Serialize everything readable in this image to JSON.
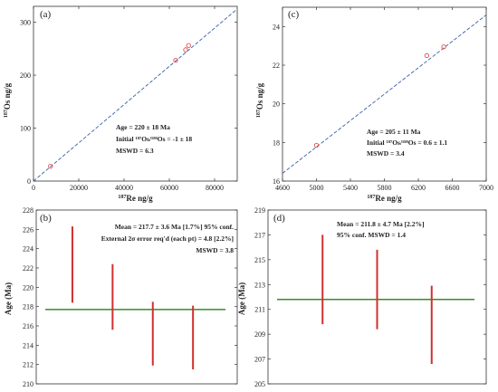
{
  "chart_data": [
    {
      "panel": "(a)",
      "type": "scatter",
      "xlabel_sup": "187",
      "xlabel": "Re ng/g",
      "ylabel_sup": "187",
      "ylabel": "Os ng/g",
      "xlim": [
        0,
        90000
      ],
      "ylim": [
        0,
        330
      ],
      "xticks": [
        0,
        20000,
        40000,
        60000,
        80000
      ],
      "yticks": [
        0,
        100,
        200,
        300
      ],
      "points": [
        [
          7500,
          28
        ],
        [
          62800,
          228
        ],
        [
          67200,
          248
        ],
        [
          68500,
          256
        ]
      ],
      "fit_line": [
        [
          0,
          0
        ],
        [
          90000,
          325
        ]
      ],
      "annotations": [
        "Age = 220 ± 18  Ma",
        "Initial ¹⁸⁷Os/¹⁸⁸Os = -1 ± 18",
        "MSWD = 6.3"
      ]
    },
    {
      "panel": "(c)",
      "type": "scatter",
      "xlabel_sup": "187",
      "xlabel": "Re ng/g",
      "ylabel_sup": "187",
      "ylabel": "Os ng/g",
      "xlim": [
        4600,
        7000
      ],
      "ylim": [
        16,
        25
      ],
      "xticks": [
        4600,
        5000,
        5400,
        5800,
        6200,
        6600,
        7000
      ],
      "yticks": [
        16,
        18,
        20,
        22,
        24
      ],
      "points": [
        [
          5000,
          17.85
        ],
        [
          6300,
          22.5
        ],
        [
          6500,
          22.95
        ]
      ],
      "fit_line": [
        [
          4600,
          16.4
        ],
        [
          7000,
          24.6
        ]
      ],
      "annotations": [
        "Age = 205 ± 11  Ma",
        "Initial ¹⁸⁷Os/¹⁸⁸Os = 0.6 ± 1.1",
        "MSWD = 3.4"
      ]
    },
    {
      "panel": "(b)",
      "type": "errorbar",
      "ylabel": "Age (Ma)",
      "ylim": [
        210,
        228
      ],
      "yticks": [
        210,
        212,
        214,
        216,
        218,
        220,
        222,
        224,
        226,
        228
      ],
      "mean": 217.7,
      "bars": [
        [
          218.4,
          226.3
        ],
        [
          215.6,
          222.4
        ],
        [
          211.9,
          218.5
        ],
        [
          211.5,
          218.1
        ]
      ],
      "annotations": [
        "Mean = 217.7 ± 3.6 Ma [1.7%]  95% conf.",
        "External 2σ error req'd (each pt) = 4.8 [2.2%]",
        "MSWD = 3.8"
      ]
    },
    {
      "panel": "(d)",
      "type": "errorbar",
      "ylabel": "Age (Ma)",
      "ylim": [
        205,
        219
      ],
      "yticks": [
        205,
        207,
        209,
        211,
        213,
        215,
        217,
        219
      ],
      "mean": 211.8,
      "bars": [
        [
          209.8,
          217.0
        ],
        [
          209.4,
          215.8
        ],
        [
          206.6,
          212.9
        ]
      ],
      "annotations": [
        "Mean = 211.8 ± 4.7 Ma [2.2%]",
        "95% conf.  MSWD = 1.4"
      ]
    }
  ],
  "colors": {
    "point": "#e05050",
    "fit_line": "#3a5fa8",
    "mean_line": "#3a8a2a",
    "error_bar": "#d03030"
  }
}
